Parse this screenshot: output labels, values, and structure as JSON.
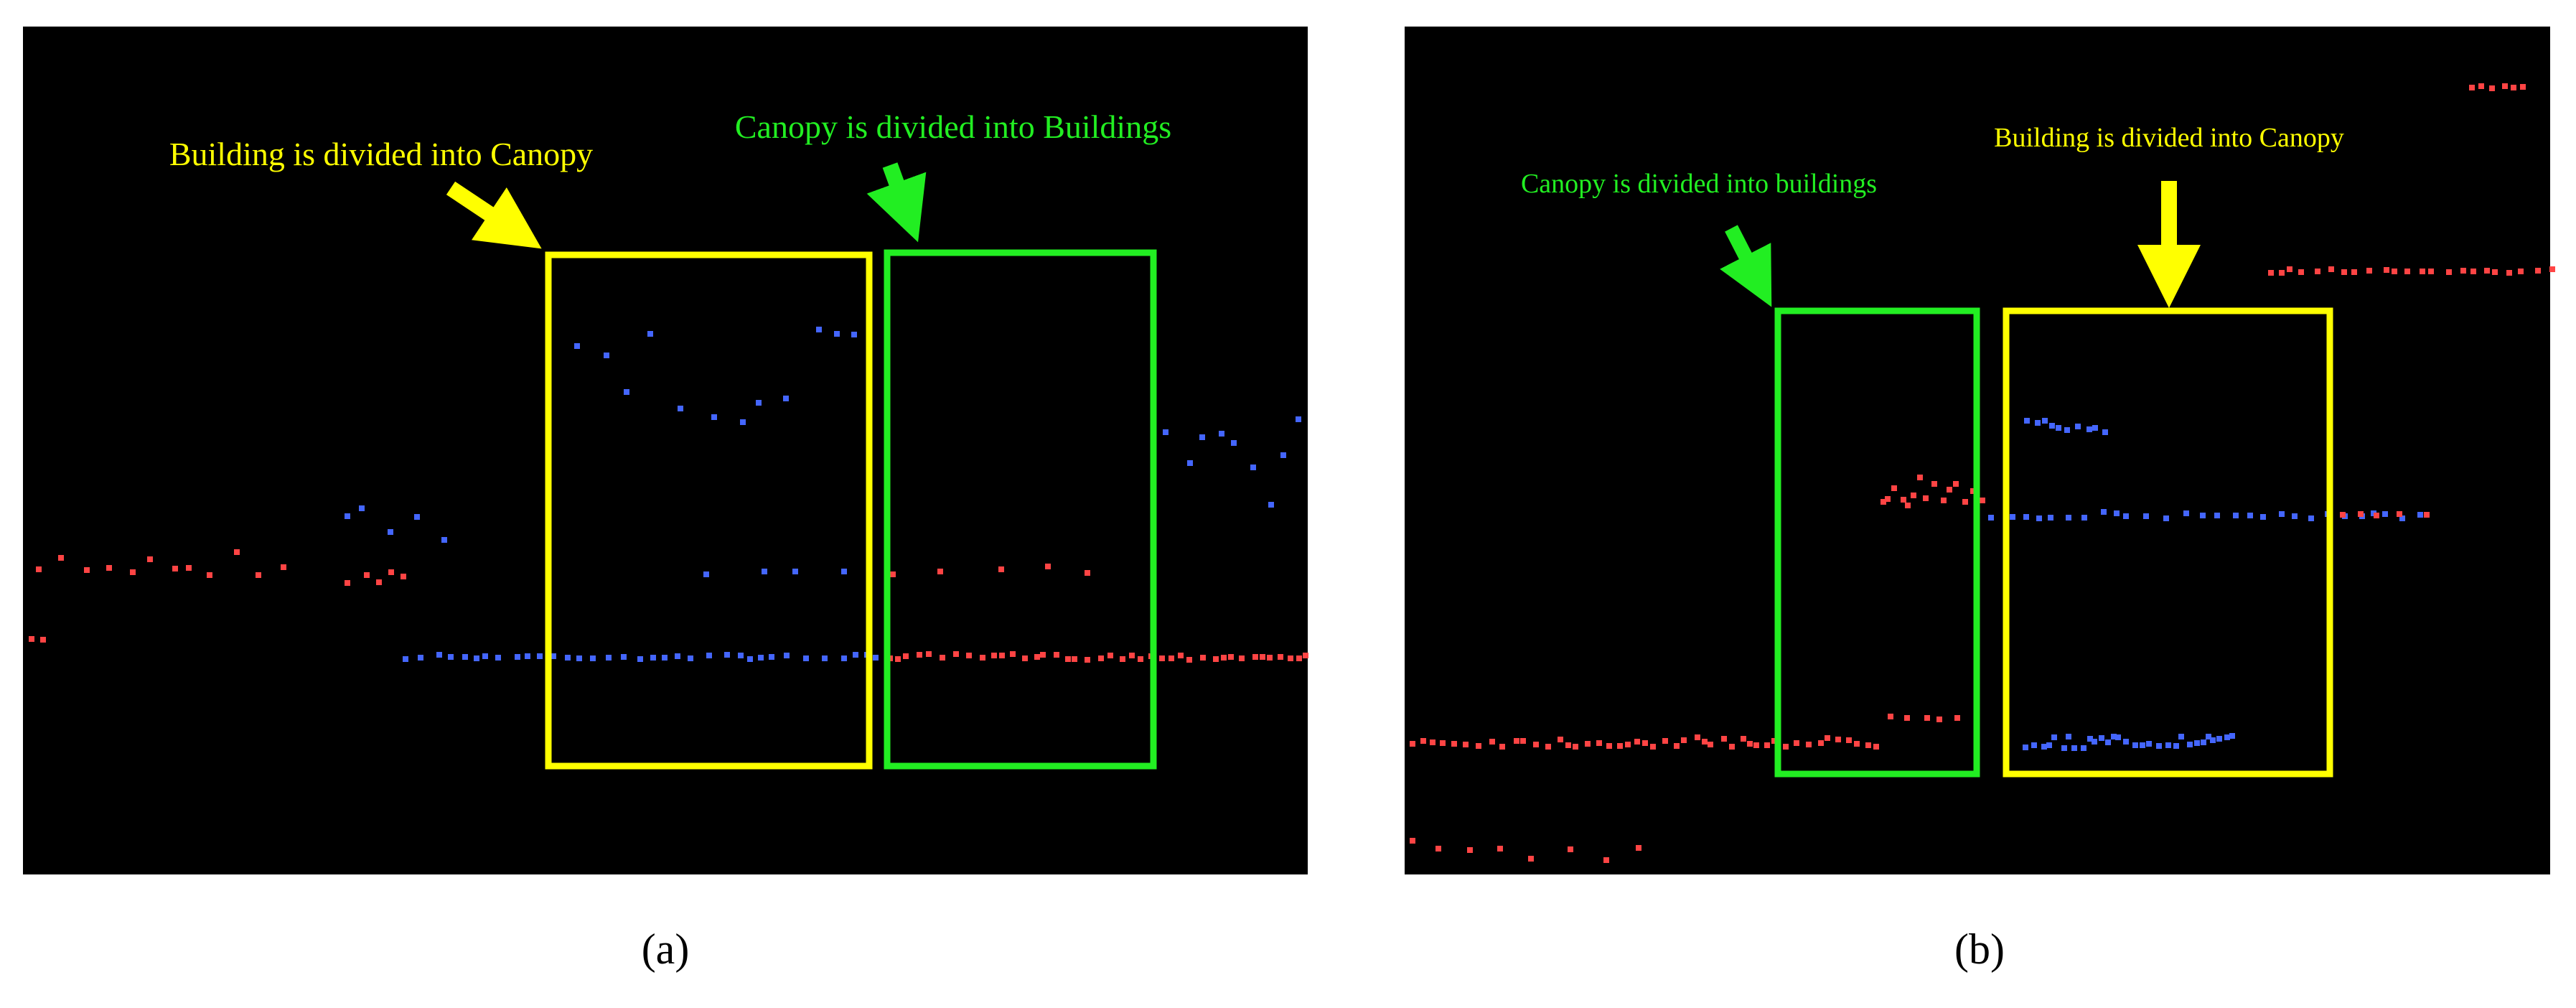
{
  "panels": [
    {
      "caption": "(a)",
      "annotations": [
        {
          "text": "Building is divided into Canopy",
          "color": "yellow"
        },
        {
          "text": "Canopy is divided into Buildings",
          "color": "green"
        }
      ]
    },
    {
      "caption": "(b)",
      "annotations": [
        {
          "text": "Canopy is divided into buildings",
          "color": "green"
        },
        {
          "text": "Building is divided into Canopy",
          "color": "yellow"
        }
      ]
    }
  ]
}
